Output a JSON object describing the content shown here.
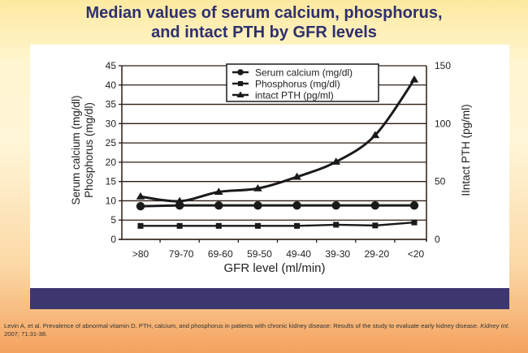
{
  "slide": {
    "title_line1": "Median values of serum calcium, phosphorus,",
    "title_line2": "and intact PTH by GFR levels",
    "citation_part1": "Levin A, et al.  Prevalence of abnormal vitamin D, PTH, calcium, and phosphorus in patients with chronic kidney disease: Results of the study to evaluate early kidney disease. ",
    "citation_journal": "Kidney Int.",
    "citation_part2": " 2007; 71:31-38.",
    "colors": {
      "title": "#2e2f6e",
      "band": "#3d3770",
      "lines": "#1a1a1a"
    }
  },
  "chart_data": {
    "type": "line",
    "title": "Median values of serum calcium, phosphorus, and intact PTH by GFR levels",
    "xlabel": "GFR level (ml/min)",
    "ylabel_left_line1": "Serum calcium (mg/dl)",
    "ylabel_left_line2": "Phosphorus (mg/dl)",
    "ylabel_right": "IIntact PTH (pg/ml)",
    "categories": [
      ">80",
      "79-70",
      "69-60",
      "59-50",
      "49-40",
      "39-30",
      "29-20",
      "<20"
    ],
    "ylim_left": [
      0,
      45
    ],
    "yticks_left": [
      "0",
      "5",
      "10",
      "15",
      "20",
      "25",
      "30",
      "35",
      "40",
      "45"
    ],
    "ylim_right": [
      0,
      150
    ],
    "yticks_right": [
      "0",
      "50",
      "100",
      "150"
    ],
    "grid": true,
    "legend_position": "top-center",
    "series": [
      {
        "name": "Serum calcium (mg/dl)",
        "axis": "left",
        "marker": "circle",
        "values": [
          8.6,
          8.8,
          8.8,
          8.8,
          8.8,
          8.8,
          8.8,
          8.8
        ]
      },
      {
        "name": "Phosphorus (mg/dl)",
        "axis": "left",
        "marker": "square",
        "values": [
          3.5,
          3.5,
          3.5,
          3.5,
          3.5,
          3.8,
          3.6,
          4.4
        ]
      },
      {
        "name": "intact PTH (pg/ml)",
        "axis": "right",
        "marker": "triangle",
        "values": [
          37,
          33,
          41,
          44,
          54,
          67,
          90,
          138
        ]
      }
    ]
  }
}
